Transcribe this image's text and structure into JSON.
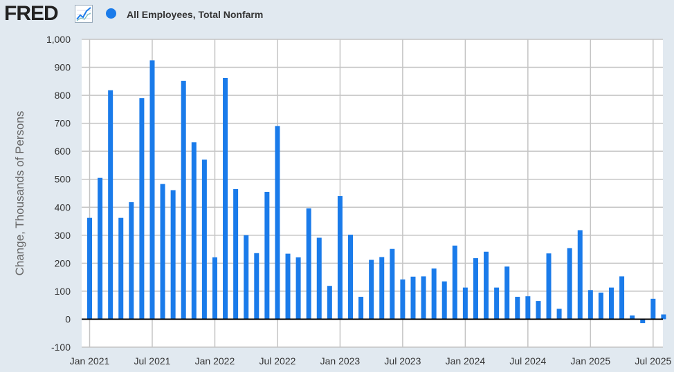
{
  "header": {
    "logo_text": "FRED",
    "logo_icon": "line-chart-icon",
    "legend_label": "All Employees, Total Nonfarm"
  },
  "colors": {
    "bar": "#1a7bea",
    "background": "#e1e9f0",
    "plot_background": "#ffffff",
    "grid": "#c4c4c4",
    "zero_line": "#000000"
  },
  "chart_data": {
    "type": "bar",
    "title": "",
    "xlabel": "",
    "ylabel": "Change, Thousands of Persons",
    "ylim": [
      -100,
      1000
    ],
    "yticks": [
      -100,
      0,
      100,
      200,
      300,
      400,
      500,
      600,
      700,
      800,
      900,
      1000
    ],
    "ytick_labels": [
      "-100",
      "0",
      "100",
      "200",
      "300",
      "400",
      "500",
      "600",
      "700",
      "800",
      "900",
      "1,000"
    ],
    "xtick_labels": [
      "Jan 2021",
      "Jul 2021",
      "Jan 2022",
      "Jul 2022",
      "Jan 2023",
      "Jul 2023",
      "Jan 2024",
      "Jul 2024",
      "Jan 2025",
      "Jul 2025"
    ],
    "xtick_indices": [
      0,
      6,
      12,
      18,
      24,
      30,
      36,
      42,
      48,
      54
    ],
    "grid": true,
    "legend": "top-left",
    "series": [
      {
        "name": "All Employees, Total Nonfarm",
        "categories": [
          "2021-01",
          "2021-02",
          "2021-03",
          "2021-04",
          "2021-05",
          "2021-06",
          "2021-07",
          "2021-08",
          "2021-09",
          "2021-10",
          "2021-11",
          "2021-12",
          "2022-01",
          "2022-02",
          "2022-03",
          "2022-04",
          "2022-05",
          "2022-06",
          "2022-07",
          "2022-08",
          "2022-09",
          "2022-10",
          "2022-11",
          "2022-12",
          "2023-01",
          "2023-02",
          "2023-03",
          "2023-04",
          "2023-05",
          "2023-06",
          "2023-07",
          "2023-08",
          "2023-09",
          "2023-10",
          "2023-11",
          "2023-12",
          "2024-01",
          "2024-02",
          "2024-03",
          "2024-04",
          "2024-05",
          "2024-06",
          "2024-07",
          "2024-08",
          "2024-09",
          "2024-10",
          "2024-11",
          "2024-12",
          "2025-01",
          "2025-02",
          "2025-03",
          "2025-04",
          "2025-05",
          "2025-06",
          "2025-07",
          "2025-08"
        ],
        "values": [
          362,
          505,
          818,
          362,
          418,
          790,
          925,
          483,
          461,
          852,
          632,
          570,
          221,
          862,
          465,
          300,
          236,
          455,
          690,
          234,
          221,
          396,
          291,
          119,
          440,
          302,
          80,
          212,
          222,
          251,
          142,
          152,
          153,
          181,
          135,
          263,
          113,
          218,
          241,
          113,
          188,
          80,
          82,
          65,
          235,
          37,
          254,
          318,
          104,
          95,
          113,
          153,
          13,
          -14,
          73,
          17
        ]
      }
    ]
  }
}
